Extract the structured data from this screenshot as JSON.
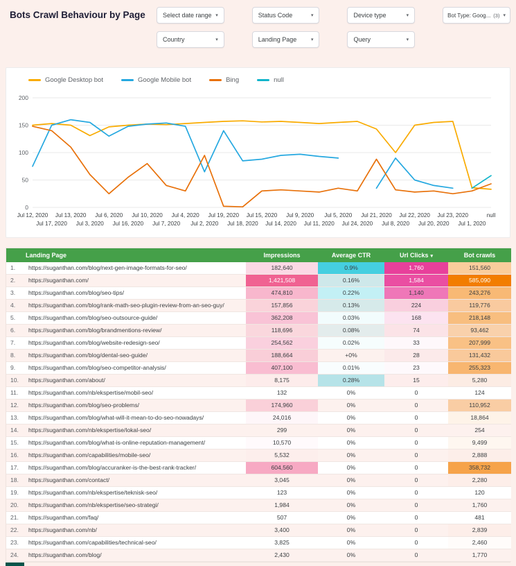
{
  "page": {
    "title": "Bots Crawl Behaviour by Page"
  },
  "colors": {
    "page_bg": "#fcf0ec",
    "table_header_green": "#45a049",
    "bottom_strip": "#07544a",
    "row_alt_bg": "#fdf1ee"
  },
  "filters": {
    "row1": [
      {
        "label": "Select date range"
      },
      {
        "label": "Status Code"
      },
      {
        "label": "Device type"
      },
      {
        "label": "Bot Type: Goog...",
        "badge": "(3)"
      }
    ],
    "row2": [
      {
        "label": "Country"
      },
      {
        "label": "Landing Page"
      },
      {
        "label": "Query"
      }
    ]
  },
  "chart_data": {
    "type": "line",
    "title": "",
    "xlabel": "",
    "ylabel": "",
    "ylim": [
      0,
      200
    ],
    "yticks": [
      0,
      50,
      100,
      150,
      200
    ],
    "grid": true,
    "legend_position": "top",
    "categories": [
      "Jul 12, 2020",
      "Jul 17, 2020",
      "Jul 13, 2020",
      "Jul 3, 2020",
      "Jul 6, 2020",
      "Jul 16, 2020",
      "Jul 10, 2020",
      "Jul 7, 2020",
      "Jul 4, 2020",
      "Jul 2, 2020",
      "Jul 19, 2020",
      "Jul 18, 2020",
      "Jul 15, 2020",
      "Jul 14, 2020",
      "Jul 9, 2020",
      "Jul 11, 2020",
      "Jul 5, 2020",
      "Jul 24, 2020",
      "Jul 21, 2020",
      "Jul 8, 2020",
      "Jul 22, 2020",
      "Jul 20, 2020",
      "Jul 23, 2020",
      "Jul 1, 2020",
      "null"
    ],
    "series": [
      {
        "name": "Google Desktop bot",
        "color": "#f9ab00",
        "values": [
          150,
          153,
          150,
          131,
          147,
          150,
          152,
          151,
          153,
          155,
          157,
          158,
          156,
          157,
          155,
          153,
          155,
          157,
          143,
          100,
          150,
          155,
          157,
          36,
          33
        ]
      },
      {
        "name": "Google Mobile bot",
        "color": "#25a8e0",
        "values": [
          75,
          150,
          160,
          155,
          130,
          148,
          152,
          154,
          148,
          65,
          140,
          85,
          88,
          95,
          97,
          93,
          90,
          null,
          35,
          90,
          50,
          40,
          35,
          null,
          null
        ]
      },
      {
        "name": "Bing",
        "color": "#e8710a",
        "values": [
          148,
          140,
          110,
          60,
          25,
          55,
          80,
          40,
          30,
          95,
          2,
          1,
          30,
          32,
          30,
          28,
          35,
          30,
          88,
          32,
          28,
          30,
          25,
          30,
          43
        ]
      },
      {
        "name": "null",
        "color": "#12b5cb",
        "values": [
          null,
          null,
          null,
          null,
          null,
          null,
          null,
          null,
          null,
          null,
          null,
          null,
          null,
          null,
          null,
          null,
          null,
          null,
          null,
          null,
          null,
          null,
          null,
          35,
          58
        ]
      }
    ]
  },
  "table": {
    "headers": {
      "landing_page": "Landing Page",
      "impressions": "Impressions",
      "ctr": "Average CTR",
      "clicks": "Url Clicks",
      "crawls": "Bot crawls"
    },
    "sort_column": "clicks",
    "sort_indicator": "▾",
    "heat": {
      "impressions": {
        "color": "#f06292",
        "pow": 0.7
      },
      "ctr": {
        "color": "#45cfe0",
        "pow": 0.8
      },
      "clicks": {
        "color": "#e8409b",
        "pow": 0.8
      },
      "crawls": {
        "color": "#f27d00",
        "pow": 0.7
      }
    },
    "rows": [
      {
        "num": "1.",
        "url": "https://suganthan.com/blog/next-gen-image-formats-for-seo/",
        "impressions": "182,640",
        "ctr": "0.9%",
        "clicks": "1,760",
        "crawls": "151,560"
      },
      {
        "num": "2.",
        "url": "https://suganthan.com/",
        "impressions": "1,421,508",
        "ctr": "0.16%",
        "clicks": "1,584",
        "crawls": "585,090"
      },
      {
        "num": "3.",
        "url": "https://suganthan.com/blog/seo-tips/",
        "impressions": "474,810",
        "ctr": "0.22%",
        "clicks": "1,140",
        "crawls": "243,276"
      },
      {
        "num": "4.",
        "url": "https://suganthan.com/blog/rank-math-seo-plugin-review-from-an-seo-guy/",
        "impressions": "157,856",
        "ctr": "0.13%",
        "clicks": "224",
        "crawls": "119,776"
      },
      {
        "num": "5.",
        "url": "https://suganthan.com/blog/seo-outsource-guide/",
        "impressions": "362,208",
        "ctr": "0.03%",
        "clicks": "168",
        "crawls": "218,148"
      },
      {
        "num": "6.",
        "url": "https://suganthan.com/blog/brandmentions-review/",
        "impressions": "118,696",
        "ctr": "0.08%",
        "clicks": "74",
        "crawls": "93,462"
      },
      {
        "num": "7.",
        "url": "https://suganthan.com/blog/website-redesign-seo/",
        "impressions": "254,562",
        "ctr": "0.02%",
        "clicks": "33",
        "crawls": "207,999"
      },
      {
        "num": "8.",
        "url": "https://suganthan.com/blog/dental-seo-guide/",
        "impressions": "188,664",
        "ctr": "+0%",
        "clicks": "28",
        "crawls": "131,432"
      },
      {
        "num": "9.",
        "url": "https://suganthan.com/blog/seo-competitor-analysis/",
        "impressions": "407,100",
        "ctr": "0.01%",
        "clicks": "23",
        "crawls": "255,323"
      },
      {
        "num": "10.",
        "url": "https://suganthan.com/about/",
        "impressions": "8,175",
        "ctr": "0.28%",
        "clicks": "15",
        "crawls": "5,280"
      },
      {
        "num": "11.",
        "url": "https://suganthan.com/nb/ekspertise/mobil-seo/",
        "impressions": "132",
        "ctr": "0%",
        "clicks": "0",
        "crawls": "124"
      },
      {
        "num": "12.",
        "url": "https://suganthan.com/blog/seo-problems/",
        "impressions": "174,960",
        "ctr": "0%",
        "clicks": "0",
        "crawls": "110,952"
      },
      {
        "num": "13.",
        "url": "https://suganthan.com/blog/what-will-it-mean-to-do-seo-nowadays/",
        "impressions": "24,016",
        "ctr": "0%",
        "clicks": "0",
        "crawls": "18,864"
      },
      {
        "num": "14.",
        "url": "https://suganthan.com/nb/ekspertise/lokal-seo/",
        "impressions": "299",
        "ctr": "0%",
        "clicks": "0",
        "crawls": "254"
      },
      {
        "num": "15.",
        "url": "https://suganthan.com/blog/what-is-online-reputation-management/",
        "impressions": "10,570",
        "ctr": "0%",
        "clicks": "0",
        "crawls": "9,499"
      },
      {
        "num": "16.",
        "url": "https://suganthan.com/capabilities/mobile-seo/",
        "impressions": "5,532",
        "ctr": "0%",
        "clicks": "0",
        "crawls": "2,888"
      },
      {
        "num": "17.",
        "url": "https://suganthan.com/blog/accuranker-is-the-best-rank-tracker/",
        "impressions": "604,560",
        "ctr": "0%",
        "clicks": "0",
        "crawls": "358,732"
      },
      {
        "num": "18.",
        "url": "https://suganthan.com/contact/",
        "impressions": "3,045",
        "ctr": "0%",
        "clicks": "0",
        "crawls": "2,280"
      },
      {
        "num": "19.",
        "url": "https://suganthan.com/nb/ekspertise/teknisk-seo/",
        "impressions": "123",
        "ctr": "0%",
        "clicks": "0",
        "crawls": "120"
      },
      {
        "num": "20.",
        "url": "https://suganthan.com/nb/ekspertise/seo-strategi/",
        "impressions": "1,984",
        "ctr": "0%",
        "clicks": "0",
        "crawls": "1,760"
      },
      {
        "num": "21.",
        "url": "https://suganthan.com/faq/",
        "impressions": "507",
        "ctr": "0%",
        "clicks": "0",
        "crawls": "481"
      },
      {
        "num": "22.",
        "url": "https://suganthan.com/nb/",
        "impressions": "3,400",
        "ctr": "0%",
        "clicks": "0",
        "crawls": "2,839"
      },
      {
        "num": "23.",
        "url": "https://suganthan.com/capabilities/technical-seo/",
        "impressions": "3,825",
        "ctr": "0%",
        "clicks": "0",
        "crawls": "2,460"
      },
      {
        "num": "24.",
        "url": "https://suganthan.com/blog/",
        "impressions": "2,430",
        "ctr": "0%",
        "clicks": "0",
        "crawls": "1,770"
      }
    ]
  }
}
